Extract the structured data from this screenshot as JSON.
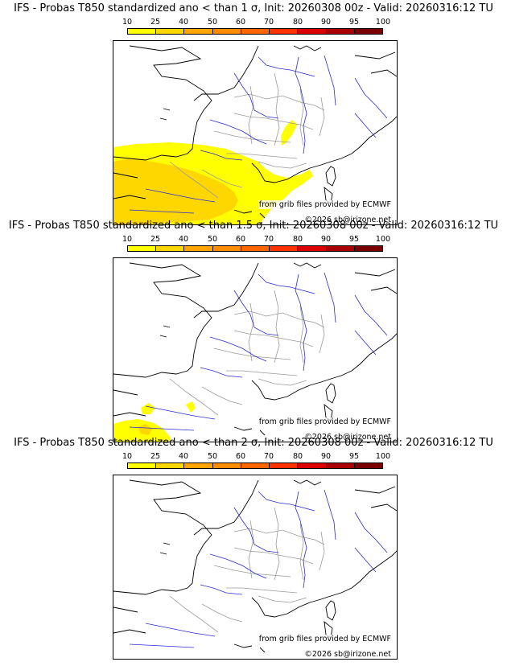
{
  "colors": {
    "coast": "#000000",
    "rivers": "#2b2bd6",
    "borders": "#9a9a9a",
    "legend": [
      "#ffff00",
      "#ffd700",
      "#ffa500",
      "#ff8c00",
      "#ff6600",
      "#ff3300",
      "#dd0000",
      "#aa0000",
      "#7a0000"
    ]
  },
  "legend": {
    "ticks": [
      "10",
      "25",
      "40",
      "50",
      "60",
      "70",
      "80",
      "90",
      "95",
      "100"
    ]
  },
  "panels": [
    {
      "title": "IFS - Probas T850  standardized ano < than 1 σ, Init: 20260308 00z - Valid: 20260316:12 TU",
      "credit": "from grib files provided by ECMWF",
      "copyright": "©2026 sb@irizone.net"
    },
    {
      "title": "IFS - Probas T850  standardized ano < than 1.5 σ, Init: 20260308 00z - Valid: 20260316:12 TU",
      "credit": "from grib files provided by ECMWF",
      "copyright": "©2026 sb@irizone.net"
    },
    {
      "title": "IFS - Probas T850  standardized ano < than 2 σ, Init: 20260308 00z - Valid: 20260316:12 TU",
      "credit": "from grib files provided by ECMWF",
      "copyright": "©2026 sb@irizone.net"
    }
  ]
}
